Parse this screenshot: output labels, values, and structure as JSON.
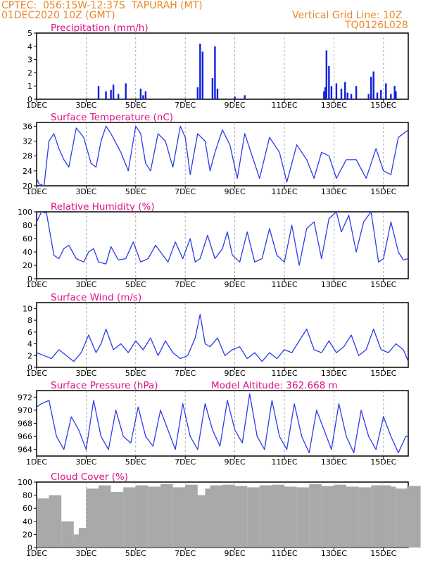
{
  "header": {
    "line1_left": "CPTEC:  056:15W-12:37S  TAPURAH (MT)",
    "line2_left": "01DEC2020 10Z (GMT)",
    "line1_right": "Vertical Grid Line: 10Z",
    "line2_right": "TQ0126L028"
  },
  "colors": {
    "header": "#e8892b",
    "title": "#e0108a",
    "line": "#2a3ce8",
    "bar": "#1020e0",
    "cloud": "#a9a9a9",
    "grid": "#888888",
    "axis": "#000000"
  },
  "x_axis": {
    "ticks": [
      "1DEC",
      "3DEC",
      "5DEC",
      "7DEC",
      "9DEC",
      "11DEC",
      "13DEC",
      "15DEC"
    ],
    "range_days": [
      0,
      15
    ]
  },
  "chart_data": [
    {
      "type": "bar",
      "title": "Precipitation (mm/h)",
      "ylim": [
        0,
        5
      ],
      "yticks": [
        "0",
        "1",
        "2",
        "3",
        "4",
        "5"
      ],
      "x": [
        2.5,
        2.8,
        3.0,
        3.1,
        3.3,
        3.6,
        4.2,
        4.3,
        4.4,
        6.5,
        6.6,
        6.7,
        7.1,
        7.2,
        7.3,
        8.0,
        8.4,
        11.6,
        11.65,
        11.7,
        11.8,
        11.9,
        12.1,
        12.3,
        12.45,
        12.55,
        12.7,
        12.9,
        13.4,
        13.5,
        13.6,
        13.75,
        13.9,
        14.1,
        14.3,
        14.45,
        14.5
      ],
      "values": [
        1.0,
        0.6,
        0.7,
        1.1,
        0.4,
        1.2,
        0.8,
        0.3,
        0.6,
        0.9,
        4.2,
        3.6,
        1.6,
        4.0,
        0.8,
        0.2,
        0.3,
        0.6,
        0.9,
        3.7,
        2.5,
        1.0,
        1.2,
        0.8,
        1.3,
        0.5,
        0.4,
        1.0,
        0.4,
        1.7,
        2.1,
        0.5,
        0.7,
        1.2,
        0.4,
        1.0,
        0.6
      ],
      "grid": true
    },
    {
      "type": "line",
      "title": "Surface Temperature (nC)",
      "ylim": [
        20,
        37
      ],
      "yticks": [
        "20",
        "24",
        "28",
        "32",
        "36"
      ],
      "x": [
        0,
        0.1,
        0.3,
        0.5,
        0.7,
        0.9,
        1.1,
        1.3,
        1.6,
        1.9,
        2.2,
        2.4,
        2.6,
        2.8,
        3.0,
        3.4,
        3.7,
        4.0,
        4.2,
        4.4,
        4.6,
        4.9,
        5.2,
        5.5,
        5.8,
        6.0,
        6.2,
        6.5,
        6.8,
        7.0,
        7.2,
        7.5,
        7.8,
        8.1,
        8.4,
        8.7,
        9.0,
        9.4,
        9.8,
        10.1,
        10.5,
        10.9,
        11.2,
        11.5,
        11.8,
        12.1,
        12.5,
        12.9,
        13.3,
        13.7,
        14.0,
        14.3,
        14.6,
        15.0
      ],
      "values": [
        22,
        20.5,
        20,
        32,
        34,
        30,
        27,
        25,
        35.5,
        33,
        26,
        25,
        32,
        36,
        34,
        29,
        24,
        36,
        34,
        26,
        24,
        34,
        32,
        25,
        36,
        33,
        23,
        34,
        32,
        24,
        29,
        35,
        31,
        22,
        34,
        28,
        22,
        33,
        29,
        21,
        31,
        27,
        22,
        29,
        28,
        22,
        27,
        27,
        22,
        30,
        24,
        23,
        33,
        35
      ],
      "grid": true
    },
    {
      "type": "line",
      "title": "Relative Humidity (%)",
      "ylim": [
        0,
        100
      ],
      "yticks": [
        "0",
        "20",
        "40",
        "60",
        "80",
        "100"
      ],
      "x": [
        0,
        0.2,
        0.4,
        0.7,
        0.9,
        1.1,
        1.3,
        1.6,
        1.9,
        2.1,
        2.3,
        2.5,
        2.8,
        3.0,
        3.3,
        3.6,
        3.9,
        4.2,
        4.5,
        4.8,
        5.0,
        5.3,
        5.6,
        5.9,
        6.2,
        6.4,
        6.6,
        6.9,
        7.2,
        7.5,
        7.7,
        7.9,
        8.2,
        8.5,
        8.8,
        9.1,
        9.4,
        9.7,
        10.0,
        10.3,
        10.6,
        10.9,
        11.2,
        11.5,
        11.8,
        12.1,
        12.3,
        12.6,
        12.9,
        13.2,
        13.5,
        13.8,
        14.0,
        14.3,
        14.6,
        14.8,
        15.0
      ],
      "values": [
        85,
        100,
        98,
        35,
        30,
        45,
        50,
        30,
        25,
        40,
        45,
        25,
        22,
        48,
        28,
        30,
        55,
        25,
        30,
        50,
        40,
        25,
        55,
        30,
        60,
        25,
        30,
        65,
        30,
        45,
        70,
        35,
        25,
        70,
        25,
        30,
        75,
        35,
        25,
        80,
        20,
        75,
        85,
        30,
        90,
        100,
        70,
        95,
        40,
        85,
        100,
        25,
        30,
        85,
        40,
        28,
        30
      ],
      "grid": true
    },
    {
      "type": "line",
      "title": "Surface Wind (m/s)",
      "ylim": [
        0,
        11
      ],
      "yticks": [
        "0",
        "2",
        "4",
        "6",
        "8",
        "10"
      ],
      "x": [
        0,
        0.3,
        0.6,
        0.9,
        1.2,
        1.5,
        1.8,
        2.1,
        2.4,
        2.6,
        2.8,
        3.1,
        3.4,
        3.7,
        4.0,
        4.3,
        4.6,
        4.9,
        5.2,
        5.5,
        5.8,
        6.1,
        6.4,
        6.6,
        6.8,
        7.0,
        7.3,
        7.6,
        7.9,
        8.2,
        8.5,
        8.8,
        9.1,
        9.4,
        9.7,
        10.0,
        10.3,
        10.6,
        10.9,
        11.2,
        11.5,
        11.8,
        12.1,
        12.4,
        12.7,
        13.0,
        13.3,
        13.6,
        13.9,
        14.2,
        14.5,
        14.8,
        15.0
      ],
      "values": [
        2.5,
        2.0,
        1.5,
        3.0,
        2.0,
        1.0,
        2.5,
        5.5,
        2.5,
        4.0,
        6.5,
        3.0,
        4.0,
        2.5,
        4.5,
        3.0,
        5.0,
        2.0,
        4.5,
        2.5,
        1.5,
        2.0,
        5.0,
        9.0,
        4.0,
        3.5,
        5.0,
        2.0,
        3.0,
        3.5,
        1.5,
        2.5,
        1.0,
        2.5,
        1.5,
        3.0,
        2.5,
        4.5,
        6.5,
        3.0,
        2.5,
        4.5,
        2.5,
        3.5,
        5.5,
        2.0,
        3.0,
        6.5,
        3.0,
        2.5,
        4.0,
        3.0,
        1.0
      ],
      "grid": true
    },
    {
      "type": "line",
      "title": "Surface Pressure (hPa)",
      "annotation": "Model Altitude: 362.668 m",
      "ylim": [
        963,
        973
      ],
      "yticks": [
        "964",
        "966",
        "968",
        "970",
        "972"
      ],
      "x": [
        0,
        0.2,
        0.5,
        0.8,
        1.1,
        1.4,
        1.7,
        2.0,
        2.3,
        2.6,
        2.9,
        3.2,
        3.5,
        3.8,
        4.1,
        4.4,
        4.7,
        5.0,
        5.3,
        5.6,
        5.9,
        6.2,
        6.5,
        6.8,
        7.1,
        7.4,
        7.7,
        8.0,
        8.3,
        8.6,
        8.9,
        9.2,
        9.5,
        9.8,
        10.1,
        10.4,
        10.7,
        11.0,
        11.3,
        11.6,
        11.9,
        12.2,
        12.5,
        12.8,
        13.1,
        13.4,
        13.7,
        14.0,
        14.3,
        14.6,
        14.9,
        15.0
      ],
      "values": [
        970.5,
        971,
        971.5,
        966,
        964,
        969,
        967,
        964,
        971.5,
        966,
        964,
        970,
        966,
        965,
        970.5,
        966,
        964.5,
        970,
        967,
        964,
        971,
        966,
        964,
        971,
        967,
        964.5,
        971.5,
        967,
        965,
        972.5,
        966,
        964,
        971.5,
        966,
        964,
        971,
        966,
        963.5,
        970,
        967,
        964,
        971,
        966,
        963.5,
        970,
        966,
        964,
        969,
        966,
        963.5,
        966,
        966
      ],
      "grid": true
    },
    {
      "type": "bar",
      "title": "Cloud Cover (%)",
      "ylim": [
        0,
        100
      ],
      "yticks": [
        "0",
        "20",
        "40",
        "60",
        "80",
        "100"
      ],
      "x": [
        0,
        0.5,
        1.0,
        1.3,
        1.5,
        1.7,
        2.0,
        2.5,
        3.0,
        3.5,
        4.0,
        4.5,
        5.0,
        5.5,
        6.0,
        6.4,
        6.6,
        6.8,
        7.0,
        7.5,
        8.0,
        8.5,
        9.0,
        9.5,
        10.0,
        10.5,
        11.0,
        11.5,
        12.0,
        12.5,
        13.0,
        13.5,
        13.7,
        13.8,
        14.0,
        14.5,
        15.0
      ],
      "values": [
        75,
        80,
        40,
        10,
        20,
        30,
        90,
        95,
        85,
        92,
        95,
        93,
        97,
        92,
        96,
        80,
        5,
        90,
        95,
        96,
        94,
        92,
        95,
        96,
        93,
        92,
        97,
        94,
        96,
        93,
        92,
        95,
        10,
        95,
        93,
        90,
        94
      ],
      "grid": true
    }
  ],
  "panel_titles": {
    "p0": "Precipitation (mm/h)",
    "p1": "Surface Temperature (nC)",
    "p2": "Relative Humidity (%)",
    "p3": "Surface Wind (m/s)",
    "p4": "Surface Pressure (hPa)",
    "p5": "Cloud Cover (%)",
    "p4_annotation": "Model Altitude: 362.668 m"
  }
}
